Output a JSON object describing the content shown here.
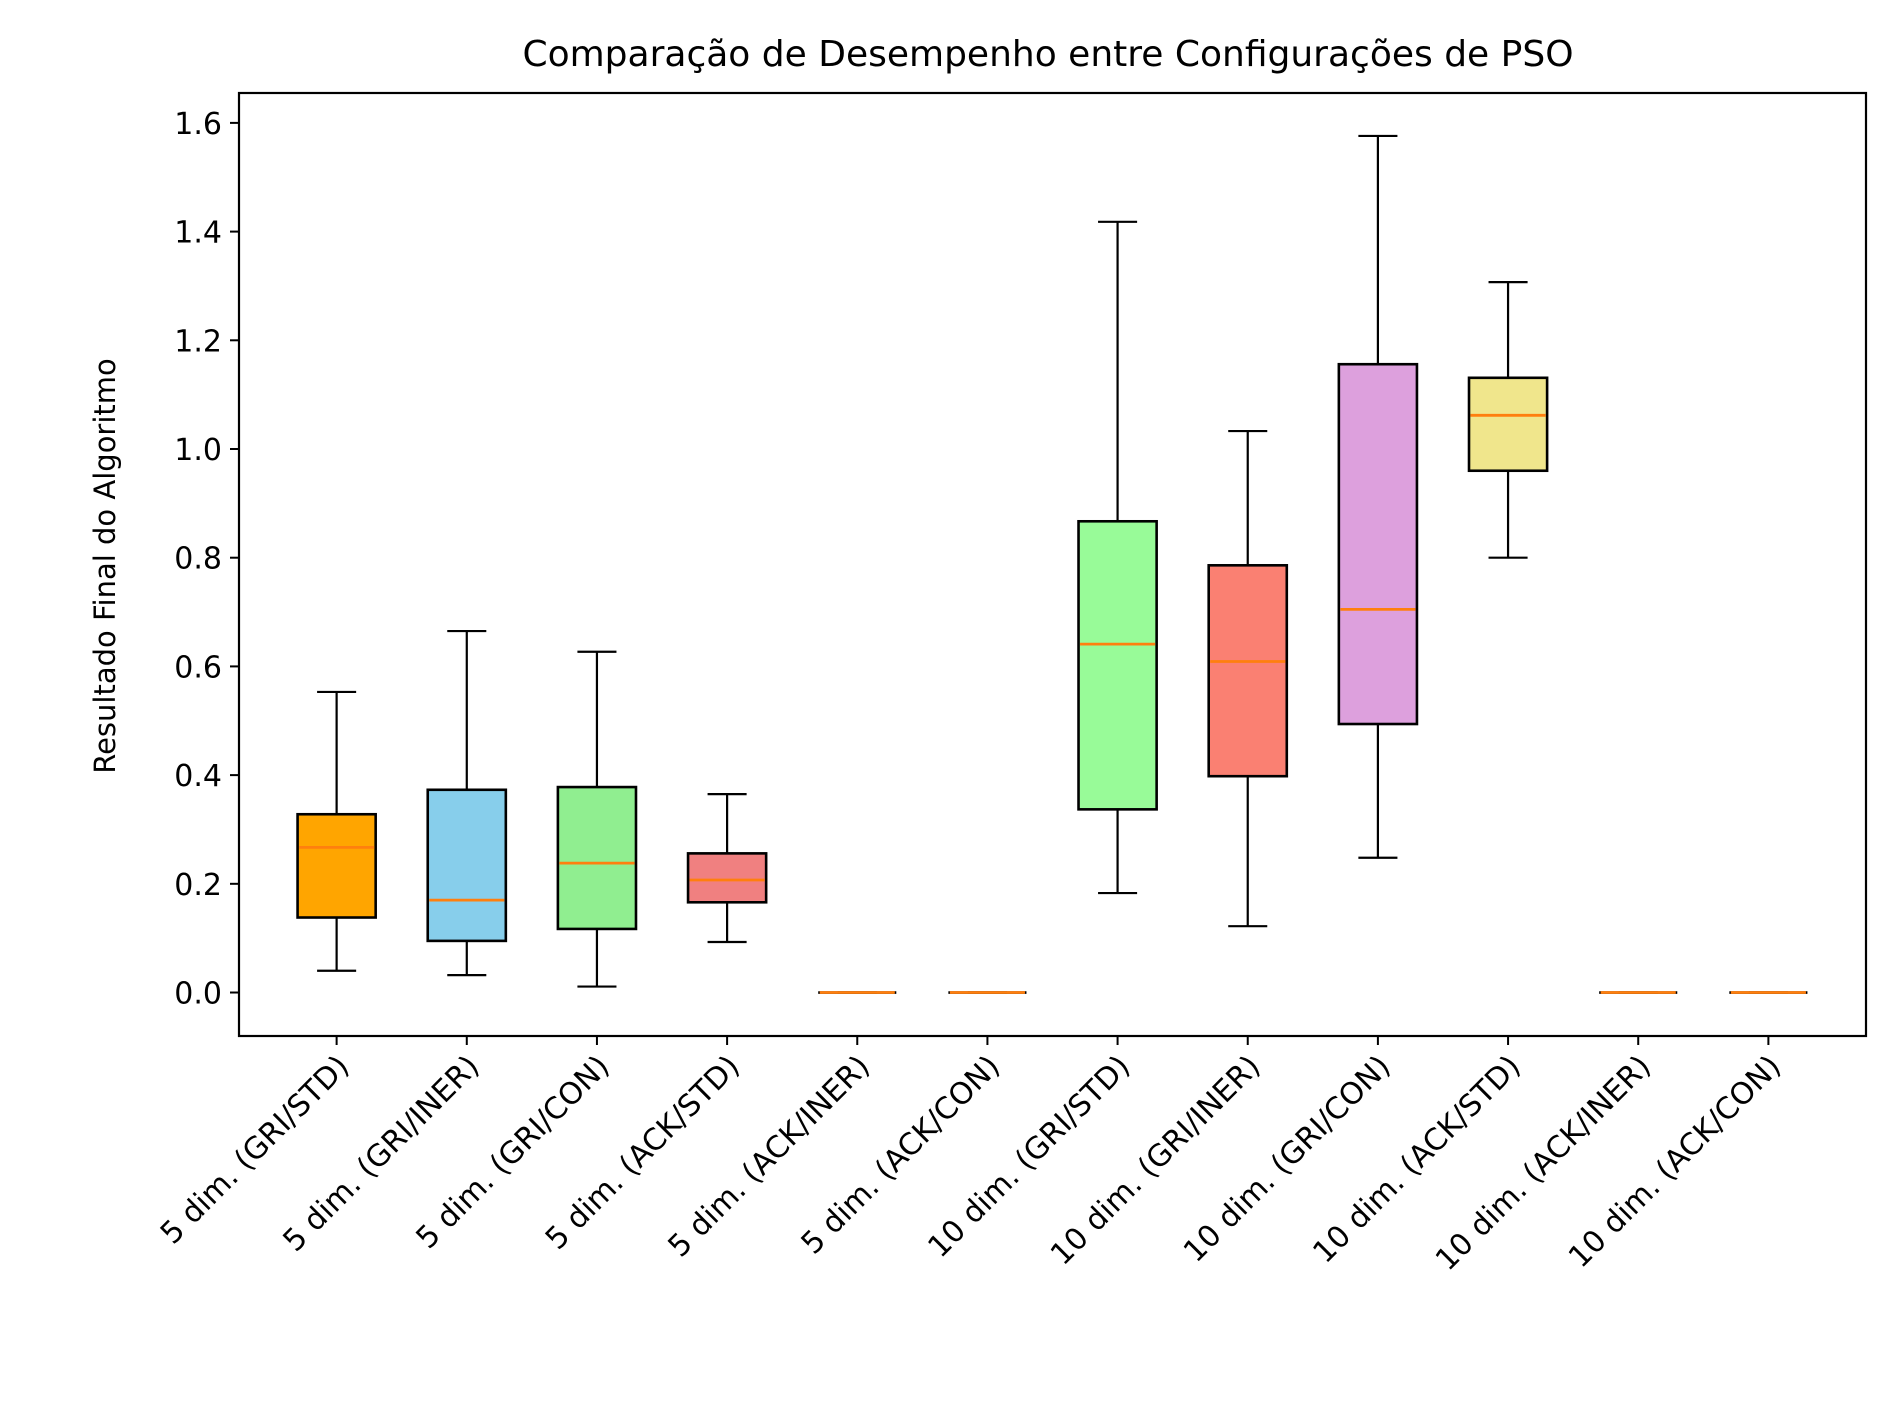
{
  "chart_data": {
    "type": "boxplot",
    "title": "Comparação de Desempenho entre Configurações de PSO",
    "xlabel": "",
    "ylabel": "Resultado Final do Algoritmo",
    "ylim": [
      -0.08,
      1.655
    ],
    "yticks": [
      "0.0",
      "0.2",
      "0.4",
      "0.6",
      "0.8",
      "1.0",
      "1.2",
      "1.4",
      "1.6"
    ],
    "ytick_values": [
      0.0,
      0.2,
      0.4,
      0.6,
      0.8,
      1.0,
      1.2,
      1.4,
      1.6
    ],
    "grid": false,
    "median_color": "#ff7f0e",
    "categories": [
      "5 dim. (GRI/STD)",
      "5 dim. (GRI/INER)",
      "5 dim. (GRI/CON)",
      "5 dim. (ACK/STD)",
      "5 dim. (ACK/INER)",
      "5 dim. (ACK/CON)",
      "10 dim. (GRI/STD)",
      "10 dim. (GRI/INER)",
      "10 dim. (GRI/CON)",
      "10 dim. (ACK/STD)",
      "10 dim. (ACK/INER)",
      "10 dim. (ACK/CON)"
    ],
    "boxes": [
      {
        "whisker_low": 0.04,
        "q1": 0.138,
        "median": 0.267,
        "q3": 0.328,
        "whisker_high": 0.553,
        "color": "#ffa500"
      },
      {
        "whisker_low": 0.032,
        "q1": 0.095,
        "median": 0.17,
        "q3": 0.373,
        "whisker_high": 0.665,
        "color": "#87ceeb"
      },
      {
        "whisker_low": 0.011,
        "q1": 0.117,
        "median": 0.238,
        "q3": 0.378,
        "whisker_high": 0.627,
        "color": "#90ee90"
      },
      {
        "whisker_low": 0.093,
        "q1": 0.166,
        "median": 0.207,
        "q3": 0.256,
        "whisker_high": 0.365,
        "color": "#f08080"
      },
      {
        "whisker_low": 0.0,
        "q1": 0.0,
        "median": 0.0,
        "q3": 0.0,
        "whisker_high": 0.0,
        "color": "#dda0dd"
      },
      {
        "whisker_low": 0.0,
        "q1": 0.0,
        "median": 0.0,
        "q3": 0.0,
        "whisker_high": 0.0,
        "color": "#f0e68c"
      },
      {
        "whisker_low": 0.183,
        "q1": 0.337,
        "median": 0.641,
        "q3": 0.867,
        "whisker_high": 1.418,
        "color": "#98fb98"
      },
      {
        "whisker_low": 0.122,
        "q1": 0.398,
        "median": 0.609,
        "q3": 0.786,
        "whisker_high": 1.033,
        "color": "#fa8072"
      },
      {
        "whisker_low": 0.248,
        "q1": 0.494,
        "median": 0.705,
        "q3": 1.156,
        "whisker_high": 1.576,
        "color": "#dda0dd"
      },
      {
        "whisker_low": 0.8,
        "q1": 0.96,
        "median": 1.062,
        "q3": 1.131,
        "whisker_high": 1.307,
        "color": "#f0e68c"
      },
      {
        "whisker_low": 0.0,
        "q1": 0.0,
        "median": 0.0,
        "q3": 0.0,
        "whisker_high": 0.0,
        "color": "#87ceeb"
      },
      {
        "whisker_low": 0.0,
        "q1": 0.0,
        "median": 0.0,
        "q3": 0.0,
        "whisker_high": 0.0,
        "color": "#90ee90"
      }
    ]
  }
}
